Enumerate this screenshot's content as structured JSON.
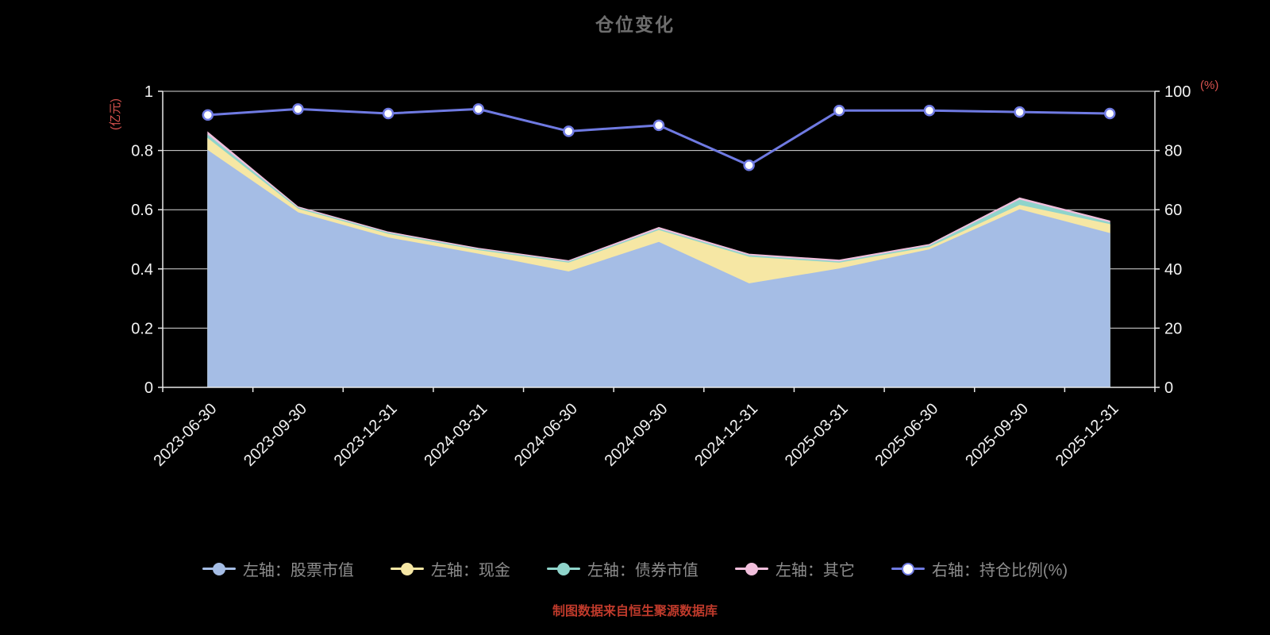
{
  "style": {
    "background": "#000000",
    "title_color": "#6e6e6e",
    "axis_text_color": "#f2f2f2",
    "grid_color": "#d9d9d9",
    "axis_line_color": "#e8e8e8",
    "unit_color": "#d9534f",
    "caption_color": "#bf3a2b",
    "legend_text_color": "#8d8d8d"
  },
  "chart_data": {
    "type": "area",
    "title": "仓位变化",
    "caption": "制图数据来自恒生聚源数据库",
    "grid": true,
    "legend_position": "bottom",
    "left_axis": {
      "name": "(亿元)",
      "min": 0,
      "max": 1,
      "tick_labels": [
        "0",
        "0.2",
        "0.4",
        "0.6",
        "0.8",
        "1"
      ]
    },
    "right_axis": {
      "name": "(%)",
      "min": 0,
      "max": 100,
      "tick_labels": [
        "0",
        "20",
        "40",
        "60",
        "80",
        "100"
      ]
    },
    "categories": [
      "2023-06-30",
      "2023-09-30",
      "2023-12-31",
      "2024-03-31",
      "2024-06-30",
      "2024-09-30",
      "2024-12-31",
      "2025-03-31",
      "2025-06-30",
      "2025-09-30",
      "2025-12-31"
    ],
    "series": [
      {
        "key": "stock",
        "name": "左轴：股票市值",
        "axis": "left",
        "render": "stacked-area",
        "color": "#a5bde5",
        "values": [
          0.8,
          0.59,
          0.505,
          0.45,
          0.39,
          0.49,
          0.35,
          0.4,
          0.465,
          0.6,
          0.52
        ]
      },
      {
        "key": "cash",
        "name": "左轴：现金",
        "axis": "left",
        "render": "stacked-area",
        "color": "#f6e7a4",
        "values": [
          0.04,
          0.012,
          0.012,
          0.012,
          0.03,
          0.04,
          0.09,
          0.02,
          0.008,
          0.015,
          0.03
        ]
      },
      {
        "key": "bond",
        "name": "左轴：债券市值",
        "axis": "left",
        "render": "stacked-area",
        "color": "#8fd4cb",
        "values": [
          0.012,
          0.004,
          0.004,
          0.004,
          0.004,
          0.004,
          0.005,
          0.004,
          0.005,
          0.018,
          0.006
        ]
      },
      {
        "key": "other",
        "name": "左轴：其它",
        "axis": "left",
        "render": "stacked-area",
        "color": "#f2bfdc",
        "values": [
          0.01,
          0.004,
          0.004,
          0.004,
          0.004,
          0.006,
          0.005,
          0.006,
          0.005,
          0.007,
          0.006
        ]
      },
      {
        "key": "ratio",
        "name": "右轴：持仓比例(%)",
        "axis": "right",
        "render": "line",
        "color": "#6f7ae2",
        "marker_fill": "#ffffff",
        "values": [
          92,
          94,
          92.5,
          94,
          86.5,
          88.5,
          75,
          93.5,
          93.5,
          93,
          92.5
        ]
      }
    ]
  }
}
